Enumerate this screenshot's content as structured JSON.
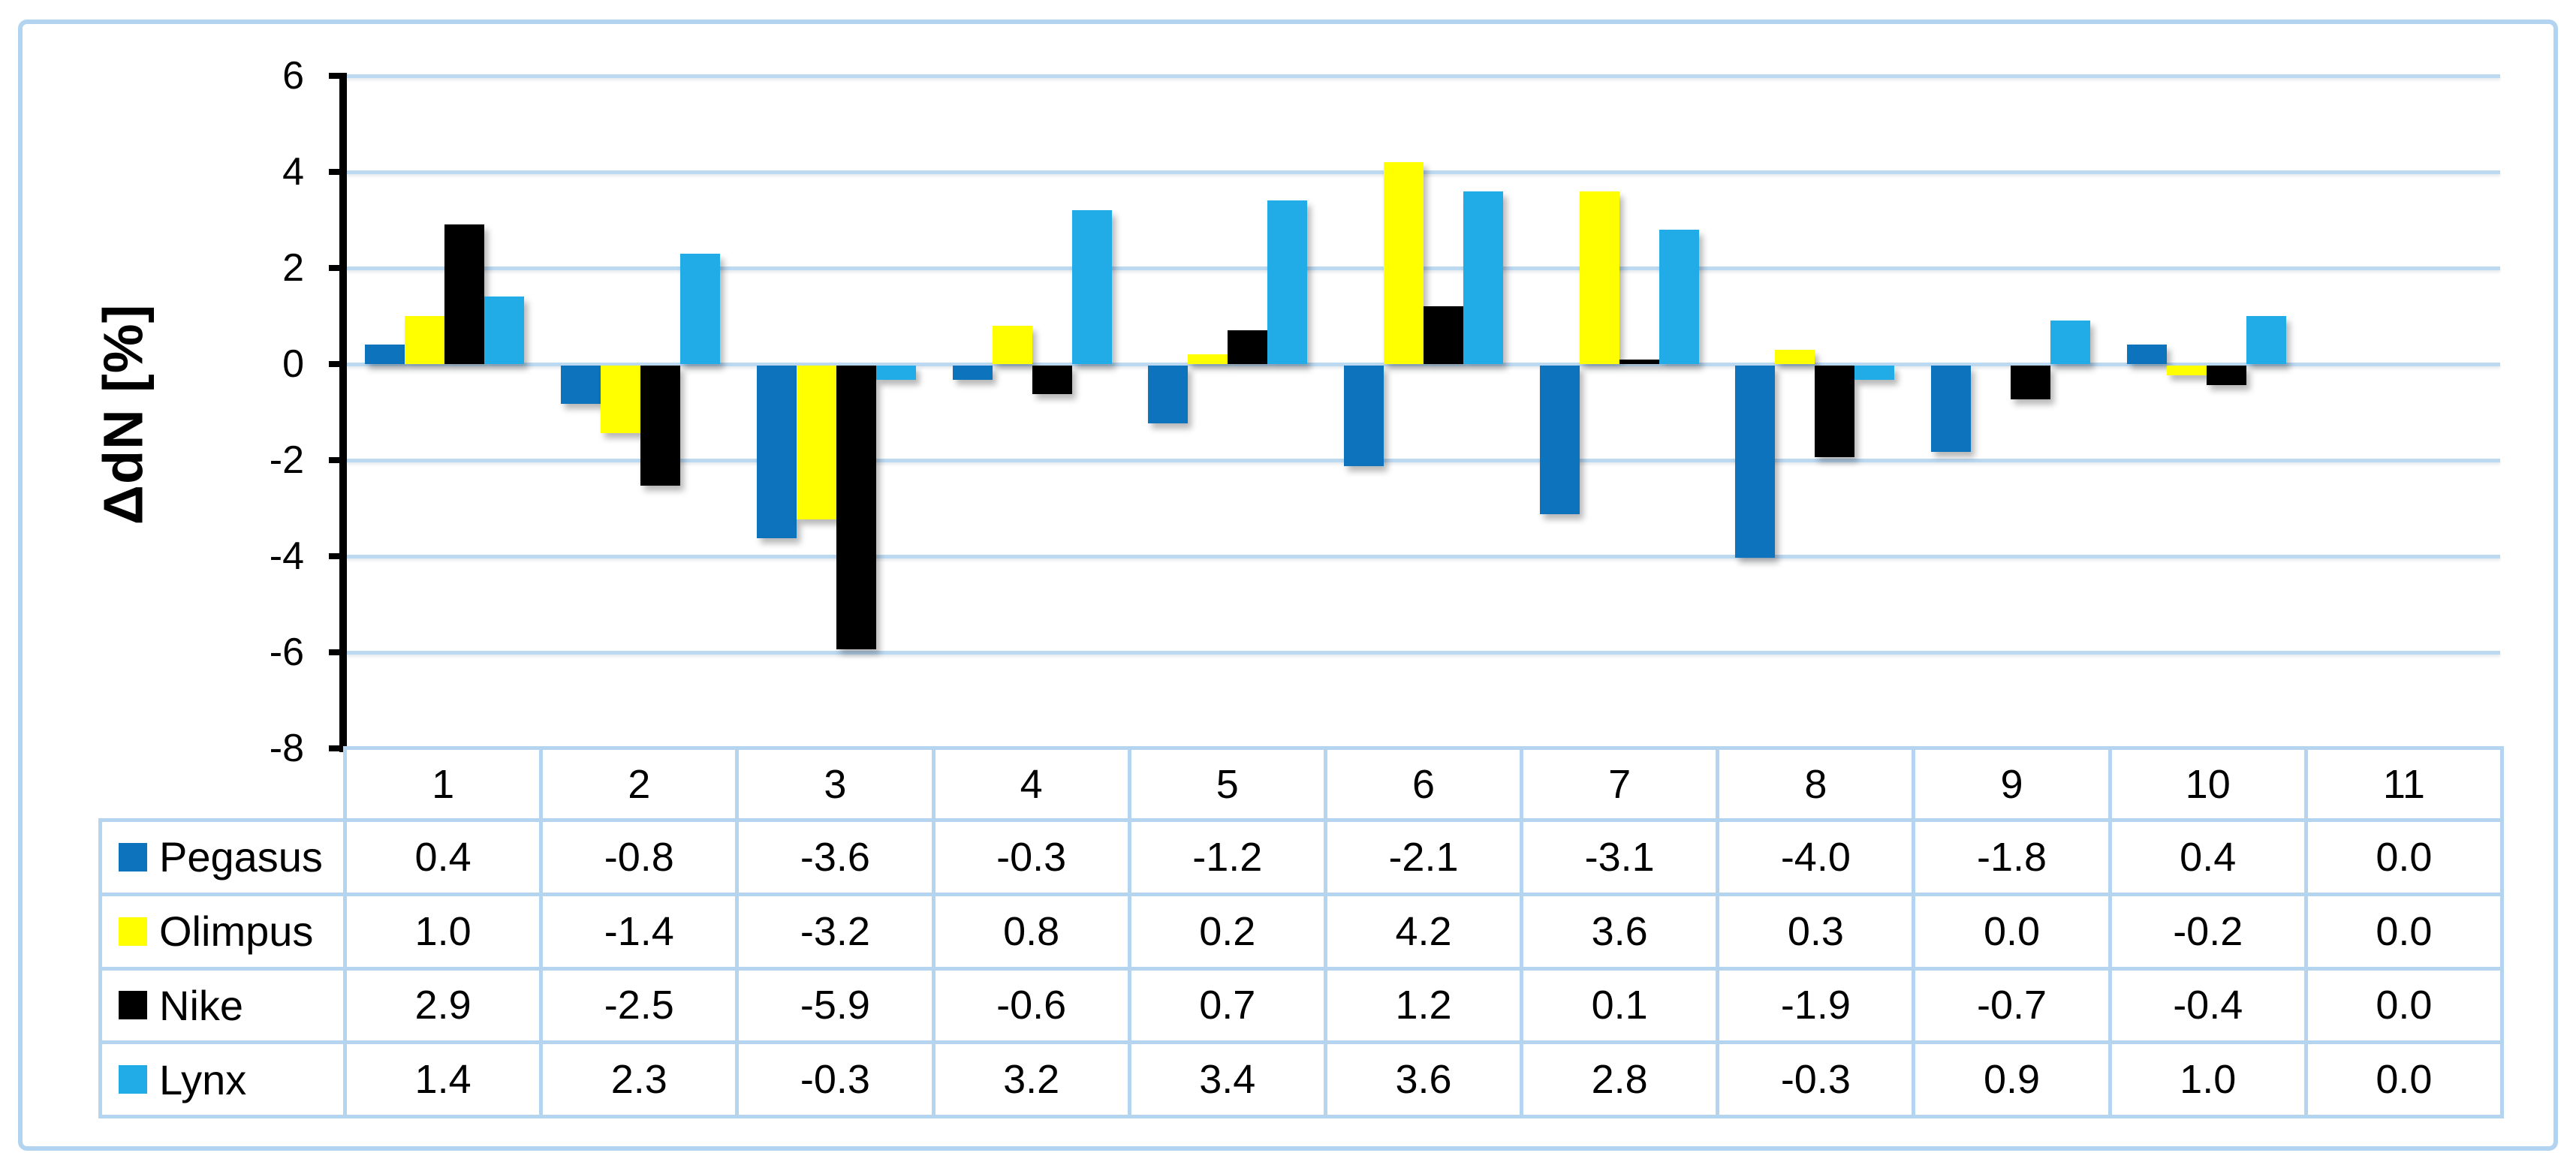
{
  "chart_data": {
    "type": "bar",
    "title": "",
    "ylabel": "ΔdN [%]",
    "xlabel": "",
    "categories": [
      "1",
      "2",
      "3",
      "4",
      "5",
      "6",
      "7",
      "8",
      "9",
      "10",
      "11"
    ],
    "series": [
      {
        "name": "Pegasus",
        "color": "#0D73BC",
        "values": [
          0.4,
          -0.8,
          -3.6,
          -0.3,
          -1.2,
          -2.1,
          -3.1,
          -4.0,
          -1.8,
          0.4,
          0.0
        ]
      },
      {
        "name": "Olimpus",
        "color": "#FFFF00",
        "values": [
          1.0,
          -1.4,
          -3.2,
          0.8,
          0.2,
          4.2,
          3.6,
          0.3,
          0.0,
          -0.2,
          0.0
        ]
      },
      {
        "name": "Nike",
        "color": "#000000",
        "values": [
          2.9,
          -2.5,
          -5.9,
          -0.6,
          0.7,
          1.2,
          0.1,
          -1.9,
          -0.7,
          -0.4,
          0.0
        ]
      },
      {
        "name": "Lynx",
        "color": "#21ACE8",
        "values": [
          1.4,
          2.3,
          -0.3,
          3.2,
          3.4,
          3.6,
          2.8,
          -0.3,
          0.9,
          1.0,
          0.0
        ]
      }
    ],
    "y_axis": {
      "min": -8,
      "max": 6,
      "step": 2,
      "tick_labels": [
        "6",
        "4",
        "2",
        "0",
        "-2",
        "-4",
        "-6",
        "-8"
      ]
    },
    "grid": true,
    "legend_position": "table-left-column",
    "value_format": "one-decimal"
  },
  "styles": {
    "grid_color": "#BCD9F2",
    "table_border_color": "#B5D4F0",
    "frame_border_color": "#B3D4F0",
    "axis_color": "#000000"
  }
}
